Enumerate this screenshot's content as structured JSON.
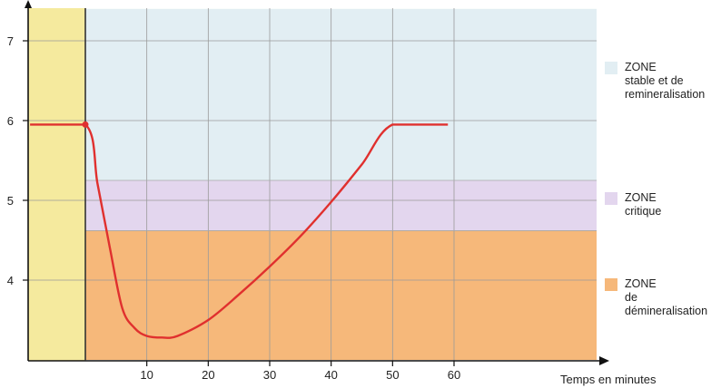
{
  "chart_data": {
    "type": "line",
    "xlabel": "Temps en minutes",
    "ylabel": "",
    "xlim": [
      -9,
      81
    ],
    "ylim": [
      3,
      7.4
    ],
    "x_ticks": [
      10,
      20,
      30,
      40,
      50,
      60
    ],
    "y_ticks": [
      4,
      5,
      6,
      7
    ],
    "grid": true,
    "legend_placement": "right",
    "zones": [
      {
        "name": "ZONE stable et de remineralisation",
        "lines": [
          "ZONE",
          "stable et de",
          "remineralisation"
        ],
        "y_from": 5.25,
        "y_to": 7.4,
        "color": "#e2eef3"
      },
      {
        "name": "ZONE critique",
        "lines": [
          "ZONE",
          "critique"
        ],
        "y_from": 4.62,
        "y_to": 5.25,
        "color": "#e3d6ee"
      },
      {
        "name": "ZONE de déminéralisation",
        "lines": [
          "ZONE",
          "de",
          "démineralisation"
        ],
        "y_from": 3,
        "y_to": 4.62,
        "color": "#f6b87a"
      }
    ],
    "pre_band": {
      "x_from": -9,
      "x_to": 0,
      "color": "#f5ea9e"
    },
    "series": [
      {
        "color": "#e0302e",
        "x": [
          -9,
          0,
          2,
          4,
          6,
          8,
          10,
          12.5,
          15,
          20,
          25,
          30,
          35,
          40,
          45,
          50,
          59
        ],
        "y": [
          5.95,
          5.95,
          5.2,
          4.4,
          3.65,
          3.4,
          3.3,
          3.28,
          3.3,
          3.5,
          3.82,
          4.17,
          4.55,
          4.98,
          5.45,
          5.95,
          5.95
        ]
      }
    ],
    "markers": [
      {
        "x": 0,
        "y": 5.95
      }
    ]
  }
}
